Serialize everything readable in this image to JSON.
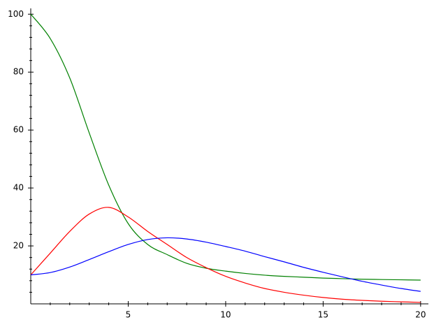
{
  "chart_data": {
    "type": "line",
    "x": [
      0,
      1,
      2,
      3,
      4,
      5,
      6,
      7,
      8,
      9,
      10,
      11,
      12,
      13,
      14,
      15,
      16,
      17,
      18,
      19,
      20
    ],
    "series": [
      {
        "color": "#008000",
        "values": [
          100,
          91.6,
          78,
          59,
          41,
          27.7,
          20.5,
          17,
          14,
          12.3,
          11.3,
          10.5,
          9.9,
          9.5,
          9.2,
          8.9,
          8.7,
          8.5,
          8.4,
          8.3,
          8.2
        ]
      },
      {
        "color": "#ff0000",
        "values": [
          10,
          17.5,
          25,
          31,
          33.3,
          30,
          25,
          20.5,
          16,
          12.5,
          9.5,
          7.2,
          5.3,
          4,
          3,
          2.2,
          1.6,
          1.2,
          0.9,
          0.7,
          0.5
        ]
      },
      {
        "color": "#0000ff",
        "values": [
          10,
          10.8,
          12.7,
          15.3,
          18,
          20.5,
          22.2,
          22.8,
          22.4,
          21.3,
          19.8,
          18.2,
          16.3,
          14.5,
          12.6,
          10.9,
          9.3,
          7.8,
          6.5,
          5.3,
          4.3
        ]
      }
    ],
    "xlim": [
      0,
      20.4
    ],
    "ylim": [
      0,
      102
    ],
    "xticks": [
      5,
      10,
      15,
      20
    ],
    "yticks": [
      20,
      40,
      60,
      80,
      100
    ],
    "xminorticks": [
      1,
      2,
      3,
      4,
      6,
      7,
      8,
      9,
      11,
      12,
      13,
      14,
      16,
      17,
      18,
      19
    ],
    "yminorticks": [
      4,
      8,
      12,
      16,
      24,
      28,
      32,
      36,
      44,
      48,
      52,
      56,
      64,
      68,
      72,
      76,
      84,
      88,
      92,
      96
    ]
  }
}
